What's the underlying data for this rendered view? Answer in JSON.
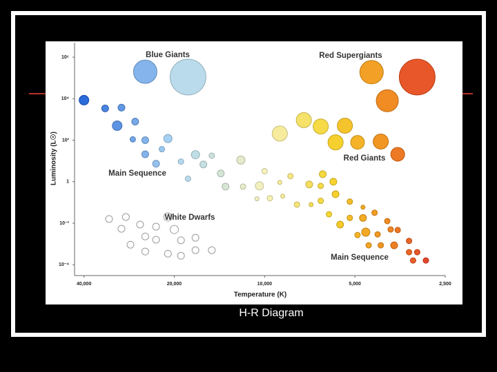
{
  "slide": {
    "caption": "H-R Diagram"
  },
  "chart_data": {
    "type": "scatter",
    "x_label": "Temperature (K)",
    "y_label": "Luminosity (L☉)",
    "xscale": "log",
    "yscale": "log",
    "xlim": [
      43000,
      2500
    ],
    "ylim": [
      3e-05,
      5000000
    ],
    "xticks": [
      {
        "value": 40000,
        "label": "40,000"
      },
      {
        "value": 20000,
        "label": "20,000"
      },
      {
        "value": 10000,
        "label": "10,000"
      },
      {
        "value": 5000,
        "label": "5,000"
      },
      {
        "value": 2500,
        "label": "2,500"
      }
    ],
    "yticks": [
      {
        "value": 1000000,
        "label": "10⁶"
      },
      {
        "value": 10000,
        "label": "10⁴"
      },
      {
        "value": 100,
        "label": "10²"
      },
      1,
      {
        "value": 0.01,
        "label": "10⁻²"
      },
      {
        "value": 0.0001,
        "label": "10⁻⁴"
      }
    ],
    "color_scale": [
      {
        "value": 40000,
        "color": "#1a5fd6"
      },
      {
        "value": 20000,
        "color": "#a8d4f2"
      },
      {
        "value": 10000,
        "color": "#f6f1b8"
      },
      {
        "value": 6000,
        "color": "#f5d21e"
      },
      {
        "value": 4000,
        "color": "#f0880f"
      },
      {
        "value": 2800,
        "color": "#e0301a"
      }
    ],
    "annotations": [
      "Blue Giants",
      "Red Supergiants",
      "Red Giants",
      "Main Sequence",
      "White Dwarfs",
      "Main Sequence"
    ],
    "series": [
      {
        "name": "Blue Giants",
        "x": [
          25000,
          18000
        ],
        "values": [
          200000,
          110000
        ],
        "sizes": [
          17,
          26
        ]
      },
      {
        "name": "Red Supergiants",
        "x": [
          4400,
          3100,
          3900
        ],
        "values": [
          190000,
          110000,
          8000
        ],
        "sizes": [
          17,
          26,
          16
        ]
      },
      {
        "name": "Red Giants",
        "x": [
          8900,
          7400,
          6500,
          5400,
          5800,
          4900,
          4100,
          3600
        ],
        "values": [
          210,
          930,
          460,
          500,
          79,
          79,
          86,
          21
        ],
        "sizes": [
          11,
          11,
          11,
          11,
          11,
          10,
          11,
          10
        ]
      },
      {
        "name": "Main Sequence",
        "x": [
          40000,
          34000,
          30000,
          31000,
          27000,
          27500,
          25000,
          22000,
          21000,
          25000,
          23000,
          19000,
          17000,
          16000,
          15000,
          18000,
          14000,
          13500,
          12000,
          11800,
          10000,
          10400,
          10600,
          9600,
          8900,
          8700,
          8200,
          7800,
          7100,
          7000,
          6400,
          6500,
          5900,
          5800,
          6500,
          6100,
          5200,
          4700,
          5600,
          5200,
          4700,
          4300,
          3900,
          4900,
          4600,
          4200,
          3800,
          3600,
          4500,
          4100,
          3700,
          3300,
          3300,
          3100,
          3200,
          2900
        ],
        "values": [
          8500,
          3400,
          3700,
          500,
          790,
          110,
          100,
          37,
          120,
          21,
          7.4,
          9.3,
          20,
          6.8,
          18,
          1.4,
          2.5,
          0.58,
          11,
          0.58,
          3.2,
          0.63,
          0.15,
          0.16,
          0.93,
          0.2,
          1.85,
          0.079,
          0.74,
          0.079,
          2.3,
          0.63,
          1,
          0.25,
          0.12,
          0.027,
          0.11,
          0.059,
          0.0086,
          0.018,
          0.018,
          0.032,
          0.0126,
          0.0027,
          0.0037,
          0.0029,
          0.005,
          0.0047,
          0.00086,
          0.00086,
          0.00086,
          0.0014,
          0.0004,
          0.0004,
          0.00016,
          0.00016
        ],
        "sizes": [
          7,
          5,
          5,
          7,
          5,
          4,
          5,
          4,
          6,
          5,
          5,
          4,
          6,
          5,
          4,
          4,
          5,
          5,
          6,
          4,
          4,
          6,
          3,
          4,
          3,
          3,
          4,
          4,
          5,
          3,
          5,
          4,
          5,
          5,
          4,
          4,
          4,
          3,
          5,
          4,
          5,
          4,
          4,
          4,
          6,
          4,
          4,
          4,
          4,
          4,
          5,
          4,
          4,
          4,
          4,
          4
        ]
      },
      {
        "name": "White Dwarfs",
        "color": "#ffffff",
        "edge_color": "#9a9a9a",
        "x": [
          33000,
          29000,
          30000,
          26000,
          23000,
          21000,
          20000,
          25000,
          23000,
          19000,
          17000,
          28000,
          25000,
          21000,
          19000,
          17000,
          15000
        ],
        "values": [
          0.016,
          0.02,
          0.0054,
          0.0086,
          0.0068,
          0.02,
          0.005,
          0.0023,
          0.0016,
          0.0015,
          0.002,
          0.00092,
          0.00043,
          0.00034,
          0.00027,
          0.0005,
          0.0005
        ],
        "sizes": [
          5,
          5,
          5,
          5,
          5,
          6,
          6,
          5,
          5,
          5,
          5,
          5,
          5,
          5,
          5,
          5,
          5
        ]
      }
    ]
  }
}
